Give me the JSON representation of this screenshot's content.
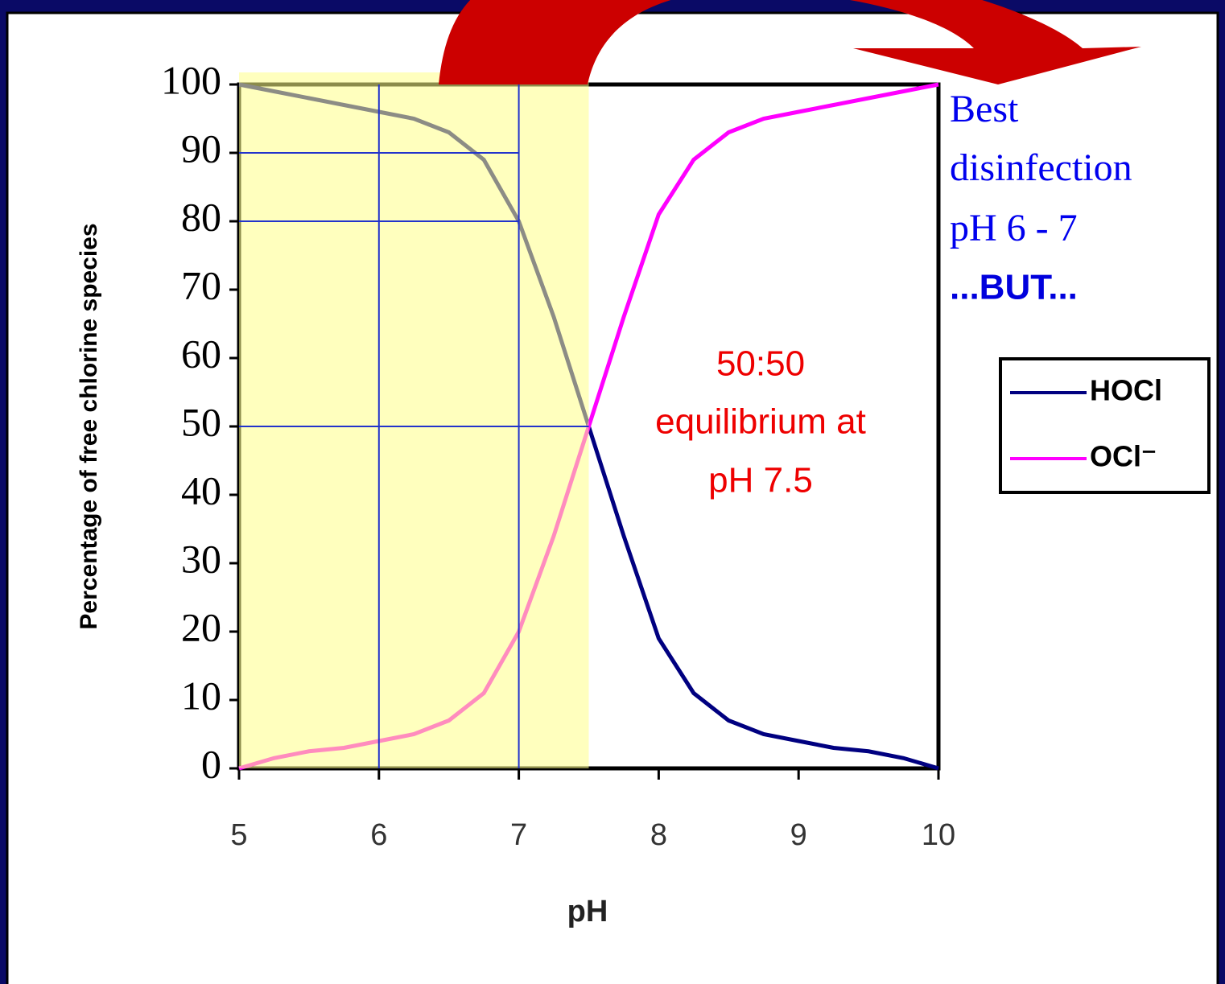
{
  "chart_data": {
    "type": "line",
    "x_label": "pH",
    "y_label": "Percentage of free chlorine species",
    "x": [
      5,
      5.25,
      5.5,
      5.75,
      6,
      6.25,
      6.5,
      6.75,
      7,
      7.25,
      7.5,
      7.75,
      8,
      8.25,
      8.5,
      8.75,
      9,
      9.25,
      9.5,
      9.75,
      10
    ],
    "series": [
      {
        "name": "HOCl",
        "color": "#000080",
        "values": [
          100,
          99,
          98,
          97,
          96,
          95,
          93,
          89,
          80,
          66,
          50,
          34,
          19,
          11,
          7,
          5,
          4,
          3,
          2.5,
          1.5,
          0
        ]
      },
      {
        "name": "OCl⁻",
        "color": "#ff00ff",
        "values": [
          0,
          1.5,
          2.5,
          3,
          4,
          5,
          7,
          11,
          20,
          34,
          50,
          66,
          81,
          89,
          93,
          95,
          96,
          97,
          98,
          99,
          100
        ]
      }
    ],
    "xlim": [
      5,
      10
    ],
    "xticks": [
      5,
      6,
      7,
      8,
      9,
      10
    ],
    "ylim": [
      0,
      100
    ],
    "yticks": [
      0,
      10,
      20,
      30,
      40,
      50,
      60,
      70,
      80,
      90,
      100
    ],
    "shaded_xrange": [
      5,
      7.5
    ],
    "reference_lines": [
      {
        "x": 6
      },
      {
        "x": 7
      },
      {
        "y": 90,
        "to_x": 7
      },
      {
        "y": 80,
        "to_x": 7
      },
      {
        "y": 50,
        "to_x": 7.5
      }
    ],
    "annotation": [
      "50:50",
      "equilibrium at",
      "pH 7.5"
    ],
    "side_note": [
      "Best",
      "disinfection",
      "pH 6 - 7"
    ],
    "side_note_emphasis": "...BUT...",
    "legend": "right"
  }
}
